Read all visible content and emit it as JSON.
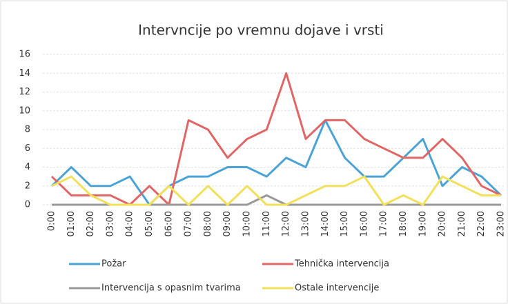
{
  "chart_data": {
    "type": "line",
    "title": "Intervncije po vremnu dojave i vrsti",
    "categories": [
      "0:00",
      "01:00",
      "02:00",
      "03:00",
      "04:00",
      "05:00",
      "06:00",
      "07:00",
      "08:00",
      "09:00",
      "10:00",
      "11:00",
      "12:00",
      "13:00",
      "14:00",
      "15:00",
      "16:00",
      "17:00",
      "18:00",
      "19:00",
      "20:00",
      "21:00",
      "22:00",
      "23:00"
    ],
    "series": [
      {
        "name": "Požar",
        "color": "#4aa3d4",
        "values": [
          2,
          4,
          2,
          2,
          3,
          0,
          2,
          3,
          3,
          4,
          4,
          3,
          5,
          4,
          9,
          5,
          3,
          3,
          5,
          7,
          2,
          4,
          3,
          1
        ]
      },
      {
        "name": "Tehnička intervencija",
        "color": "#e06666",
        "values": [
          3,
          1,
          1,
          1,
          0,
          2,
          0,
          9,
          8,
          5,
          7,
          8,
          14,
          7,
          9,
          9,
          7,
          6,
          5,
          5,
          7,
          5,
          2,
          1
        ]
      },
      {
        "name": "Intervencija s opasnim tvarima",
        "color": "#999999",
        "values": [
          0,
          0,
          0,
          0,
          0,
          0,
          0,
          0,
          0,
          0,
          0,
          1,
          0,
          0,
          0,
          0,
          0,
          0,
          0,
          0,
          0,
          0,
          0,
          0
        ]
      },
      {
        "name": "Ostale intervencije",
        "color": "#f2e05a",
        "values": [
          2,
          3,
          1,
          0,
          0,
          0,
          2,
          0,
          2,
          0,
          2,
          0,
          0,
          1,
          2,
          2,
          3,
          0,
          1,
          0,
          3,
          2,
          1,
          1
        ]
      }
    ],
    "ylim": [
      0,
      16
    ],
    "yticks": [
      0,
      2,
      4,
      6,
      8,
      10,
      12,
      14,
      16
    ],
    "grid": true
  }
}
